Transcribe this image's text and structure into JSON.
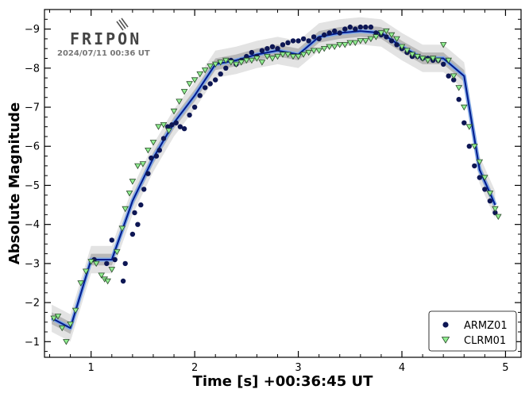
{
  "logo": {
    "text": "FRIPON",
    "date": "2024/07/11  00:36 UT"
  },
  "colors": {
    "armz": "#0d1654",
    "clrm": "#90ee90",
    "clrm_edge": "#2a4a2a",
    "fit_outer": "#7fa8e8",
    "fit_inner": "#001a8c",
    "band_light": "#d9d9d9",
    "band_dark": "#a9a9a9"
  },
  "chart_data": {
    "type": "scatter",
    "xlabel": "Time [s]  +00:36:45 UT",
    "ylabel": "Absolute Magnitude",
    "xlim": [
      0.55,
      5.15
    ],
    "ylim": [
      -0.6,
      -9.5
    ],
    "y_inverted": true,
    "xticks": [
      1,
      2,
      3,
      4,
      5
    ],
    "yticks": [
      -1,
      -2,
      -3,
      -4,
      -5,
      -6,
      -7,
      -8,
      -9
    ],
    "xtick_labels": [
      "1",
      "2",
      "3",
      "4",
      "5"
    ],
    "ytick_labels": [
      "−1",
      "−2",
      "−3",
      "−4",
      "−5",
      "−6",
      "−7",
      "−8",
      "−9"
    ],
    "grid": false,
    "legend_position": "bottom-right",
    "series": [
      {
        "name": "ARMZ01",
        "marker": "circle",
        "x": [
          1.03,
          1.15,
          1.2,
          1.23,
          1.31,
          1.33,
          1.4,
          1.42,
          1.45,
          1.48,
          1.51,
          1.55,
          1.58,
          1.63,
          1.66,
          1.7,
          1.74,
          1.78,
          1.82,
          1.86,
          1.9,
          1.95,
          2.0,
          2.05,
          2.1,
          2.15,
          2.2,
          2.25,
          2.3,
          2.35,
          2.4,
          2.45,
          2.5,
          2.55,
          2.6,
          2.65,
          2.7,
          2.75,
          2.8,
          2.85,
          2.9,
          2.95,
          3.0,
          3.05,
          3.1,
          3.15,
          3.2,
          3.25,
          3.3,
          3.35,
          3.4,
          3.45,
          3.5,
          3.55,
          3.6,
          3.65,
          3.7,
          3.75,
          3.8,
          3.85,
          3.9,
          3.95,
          4.0,
          4.05,
          4.1,
          4.15,
          4.2,
          4.25,
          4.3,
          4.35,
          4.4,
          4.45,
          4.5,
          4.55,
          4.6,
          4.65,
          4.7,
          4.75,
          4.8,
          4.85,
          4.9
        ],
        "y": [
          -3.1,
          -3.0,
          -3.6,
          -3.1,
          -2.55,
          -3.0,
          -3.75,
          -4.3,
          -4.0,
          -4.5,
          -4.9,
          -5.3,
          -5.7,
          -5.75,
          -5.9,
          -6.2,
          -6.5,
          -6.55,
          -6.6,
          -6.5,
          -6.45,
          -6.8,
          -7.0,
          -7.3,
          -7.5,
          -7.6,
          -7.7,
          -7.85,
          -8.0,
          -8.2,
          -8.1,
          -8.2,
          -8.3,
          -8.4,
          -8.3,
          -8.45,
          -8.5,
          -8.55,
          -8.5,
          -8.6,
          -8.65,
          -8.7,
          -8.7,
          -8.75,
          -8.7,
          -8.8,
          -8.75,
          -8.85,
          -8.9,
          -8.95,
          -8.9,
          -9.0,
          -9.05,
          -9.0,
          -9.05,
          -9.05,
          -9.05,
          -8.9,
          -8.85,
          -8.8,
          -8.7,
          -8.6,
          -8.5,
          -8.4,
          -8.3,
          -8.3,
          -8.25,
          -8.25,
          -8.2,
          -8.2,
          -8.1,
          -7.8,
          -7.7,
          -7.2,
          -6.6,
          -6.0,
          -5.5,
          -5.2,
          -4.9,
          -4.6,
          -4.3
        ]
      },
      {
        "name": "CLRM01",
        "marker": "triangle-down",
        "x": [
          0.64,
          0.68,
          0.72,
          0.76,
          0.8,
          0.85,
          0.9,
          0.95,
          1.0,
          1.05,
          1.1,
          1.13,
          1.16,
          1.2,
          1.25,
          1.3,
          1.33,
          1.37,
          1.4,
          1.45,
          1.5,
          1.55,
          1.6,
          1.65,
          1.7,
          1.75,
          1.8,
          1.85,
          1.9,
          1.95,
          2.0,
          2.05,
          2.1,
          2.15,
          2.2,
          2.25,
          2.3,
          2.35,
          2.4,
          2.45,
          2.5,
          2.55,
          2.6,
          2.65,
          2.7,
          2.75,
          2.8,
          2.85,
          2.9,
          2.95,
          3.0,
          3.05,
          3.1,
          3.15,
          3.2,
          3.25,
          3.3,
          3.35,
          3.4,
          3.45,
          3.5,
          3.55,
          3.6,
          3.65,
          3.7,
          3.75,
          3.8,
          3.85,
          3.9,
          3.95,
          4.0,
          4.05,
          4.1,
          4.15,
          4.2,
          4.25,
          4.3,
          4.35,
          4.4,
          4.45,
          4.5,
          4.55,
          4.6,
          4.65,
          4.7,
          4.75,
          4.8,
          4.85,
          4.9,
          4.93
        ],
        "y": [
          -1.6,
          -1.65,
          -1.35,
          -1.0,
          -1.45,
          -1.8,
          -2.5,
          -2.8,
          -3.05,
          -3.0,
          -2.7,
          -2.6,
          -2.55,
          -2.85,
          -3.3,
          -3.9,
          -4.4,
          -4.8,
          -5.1,
          -5.5,
          -5.55,
          -5.9,
          -6.1,
          -6.5,
          -6.55,
          -6.4,
          -6.9,
          -7.15,
          -7.4,
          -7.6,
          -7.7,
          -7.85,
          -7.95,
          -8.05,
          -8.1,
          -8.15,
          -8.2,
          -8.15,
          -8.1,
          -8.15,
          -8.2,
          -8.2,
          -8.25,
          -8.15,
          -8.3,
          -8.25,
          -8.3,
          -8.35,
          -8.35,
          -8.3,
          -8.3,
          -8.35,
          -8.4,
          -8.45,
          -8.45,
          -8.5,
          -8.55,
          -8.55,
          -8.6,
          -8.6,
          -8.65,
          -8.65,
          -8.7,
          -8.7,
          -8.75,
          -8.8,
          -8.9,
          -8.95,
          -8.85,
          -8.75,
          -8.55,
          -8.45,
          -8.35,
          -8.3,
          -8.25,
          -8.2,
          -8.25,
          -8.2,
          -8.6,
          -8.2,
          -7.8,
          -7.5,
          -7.0,
          -6.5,
          -6.0,
          -5.6,
          -5.2,
          -4.8,
          -4.4,
          -4.2
        ]
      },
      {
        "name": "",
        "marker": "line",
        "x": [
          0.62,
          0.8,
          1.0,
          1.2,
          1.4,
          1.6,
          1.8,
          2.0,
          2.2,
          2.4,
          2.6,
          2.8,
          3.0,
          3.2,
          3.4,
          3.6,
          3.8,
          4.0,
          4.2,
          4.4,
          4.6,
          4.75,
          4.9
        ],
        "y": [
          -1.6,
          -1.35,
          -3.1,
          -3.1,
          -4.6,
          -5.7,
          -6.6,
          -7.3,
          -8.1,
          -8.2,
          -8.35,
          -8.45,
          -8.35,
          -8.8,
          -8.9,
          -8.95,
          -8.9,
          -8.55,
          -8.25,
          -8.25,
          -7.8,
          -5.4,
          -4.5
        ]
      }
    ]
  }
}
